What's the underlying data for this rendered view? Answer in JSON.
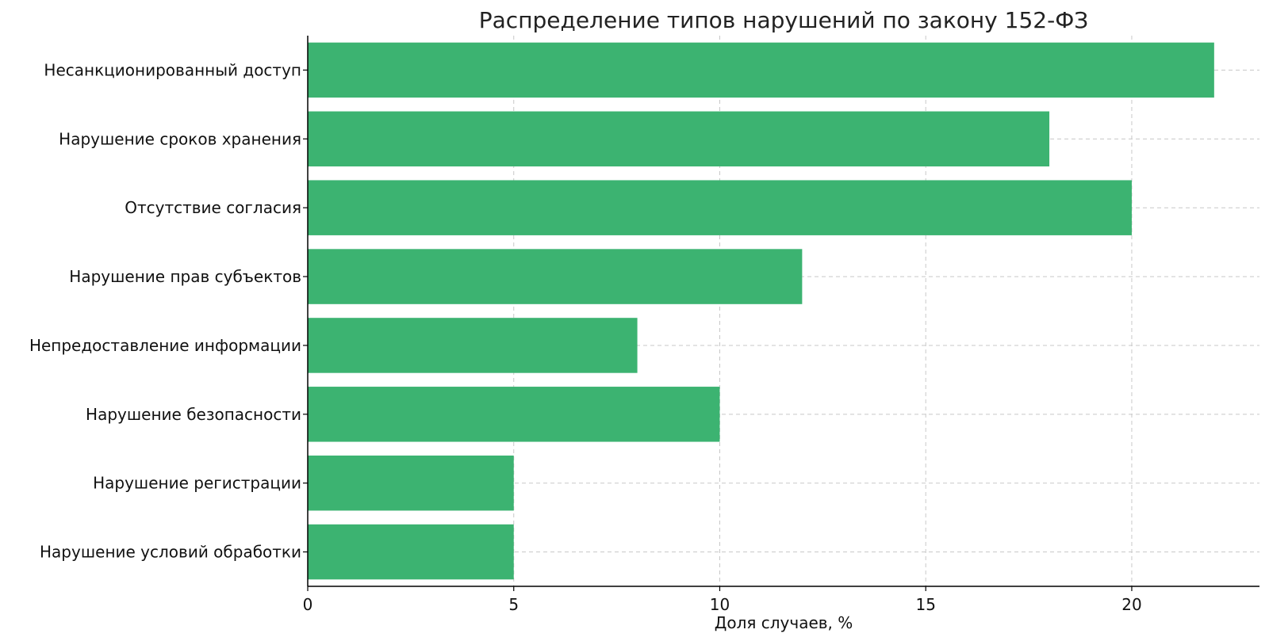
{
  "chart_data": {
    "type": "bar",
    "orientation": "horizontal",
    "title": "Распределение типов нарушений по закону 152-ФЗ",
    "xlabel": "Доля случаев, %",
    "ylabel": "",
    "categories": [
      "Несанкционированный доступ",
      "Нарушение сроков хранения",
      "Отсутствие согласия",
      "Нарушение прав субъектов",
      "Непредоставление информации",
      "Нарушение безопасности",
      "Нарушение регистрации",
      "Нарушение условий обработки"
    ],
    "values": [
      22,
      18,
      20,
      12,
      8,
      10,
      5,
      5
    ],
    "xlim": [
      0,
      23.1
    ],
    "xticks": [
      0,
      5,
      10,
      15,
      20
    ],
    "grid": true,
    "bar_color": "#3cb371"
  }
}
